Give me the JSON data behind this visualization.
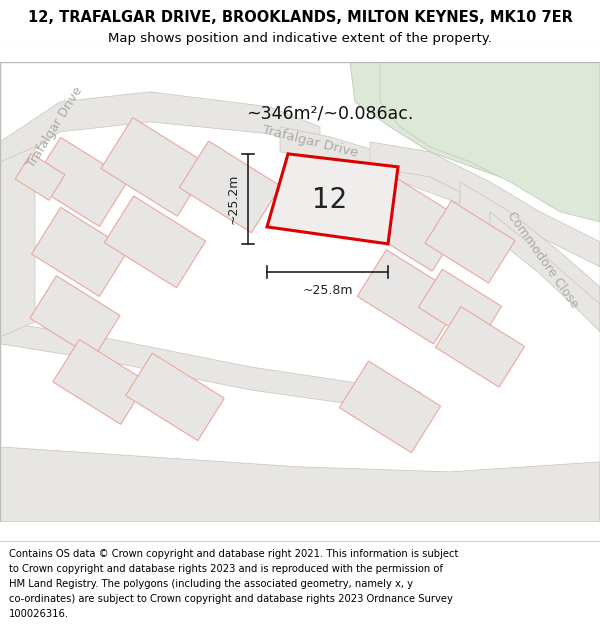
{
  "title_line1": "12, TRAFALGAR DRIVE, BROOKLANDS, MILTON KEYNES, MK10 7ER",
  "title_line2": "Map shows position and indicative extent of the property.",
  "footer_text": "Contains OS data © Crown copyright and database right 2021. This information is subject to Crown copyright and database rights 2023 and is reproduced with the permission of HM Land Registry. The polygons (including the associated geometry, namely x, y co-ordinates) are subject to Crown copyright and database rights 2023 Ordnance Survey 100026316.",
  "area_label": "~346m²/~0.086ac.",
  "property_number": "12",
  "dim_width": "~25.8m",
  "dim_height": "~25.2m",
  "map_bg": "#f5f4f2",
  "road_fill": "#e8e6e2",
  "road_edge": "#c8c4bc",
  "green_fill": "#dde8d8",
  "bld_fill": "#e8e6e4",
  "bld_edge": "#e8a8a0",
  "property_outline": "#dd0000",
  "property_fill": "#f0eeed",
  "road_label_color": "#aaaaaa",
  "dim_color": "#222222",
  "title_fontsize": 10.5,
  "subtitle_fontsize": 9.5,
  "footer_fontsize": 7.2,
  "map_border_color": "#bbbbbb"
}
